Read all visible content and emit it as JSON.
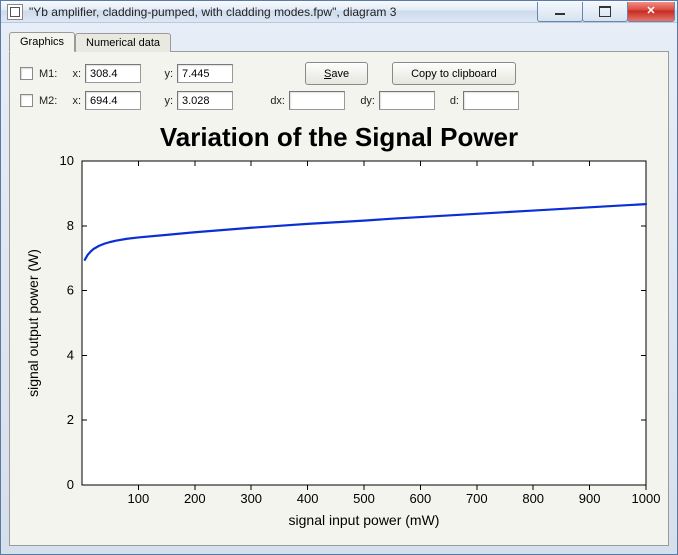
{
  "window": {
    "title": "\"Yb amplifier, cladding-pumped, with cladding modes.fpw\", diagram 3"
  },
  "tabs": [
    {
      "label": "Graphics",
      "active": true
    },
    {
      "label": "Numerical data",
      "active": false
    }
  ],
  "markers": {
    "m1": {
      "label": "M1:",
      "x_label": "x:",
      "x": "308.4",
      "y_label": "y:",
      "y": "7.445"
    },
    "m2": {
      "label": "M2:",
      "x_label": "x:",
      "x": "694.4",
      "y_label": "y:",
      "y": "3.028"
    },
    "dx_label": "dx:",
    "dx": "",
    "dy_label": "dy:",
    "dy": "",
    "d_label": "d:",
    "d": ""
  },
  "buttons": {
    "save_prefix": "",
    "save_underline": "S",
    "save_rest": "ave",
    "copy": "Copy to clipboard"
  },
  "chart": {
    "type": "line",
    "title": "Variation of the Signal Power",
    "title_fontsize": 26,
    "xlabel": "signal input power (mW)",
    "ylabel": "signal output power (W)",
    "label_fontsize": 14,
    "tick_fontsize": 13,
    "xlim": [
      0,
      1000
    ],
    "ylim": [
      0,
      10
    ],
    "xticks": [
      100,
      200,
      300,
      400,
      500,
      600,
      700,
      800,
      900,
      1000
    ],
    "yticks": [
      0,
      2,
      4,
      6,
      8,
      10
    ],
    "background_color": "#ffffff",
    "panel_color": "#f4f4ee",
    "frame_color": "#000000",
    "line_color": "#0b2fd4",
    "line_width": 2.2,
    "data": [
      [
        5,
        6.95
      ],
      [
        10,
        7.1
      ],
      [
        15,
        7.2
      ],
      [
        20,
        7.28
      ],
      [
        30,
        7.38
      ],
      [
        40,
        7.45
      ],
      [
        50,
        7.5
      ],
      [
        60,
        7.54
      ],
      [
        80,
        7.6
      ],
      [
        100,
        7.64
      ],
      [
        150,
        7.72
      ],
      [
        200,
        7.8
      ],
      [
        250,
        7.87
      ],
      [
        300,
        7.94
      ],
      [
        350,
        8.0
      ],
      [
        400,
        8.06
      ],
      [
        450,
        8.11
      ],
      [
        500,
        8.16
      ],
      [
        550,
        8.22
      ],
      [
        600,
        8.27
      ],
      [
        650,
        8.32
      ],
      [
        700,
        8.37
      ],
      [
        750,
        8.42
      ],
      [
        800,
        8.47
      ],
      [
        850,
        8.52
      ],
      [
        900,
        8.57
      ],
      [
        950,
        8.62
      ],
      [
        1000,
        8.67
      ]
    ]
  }
}
